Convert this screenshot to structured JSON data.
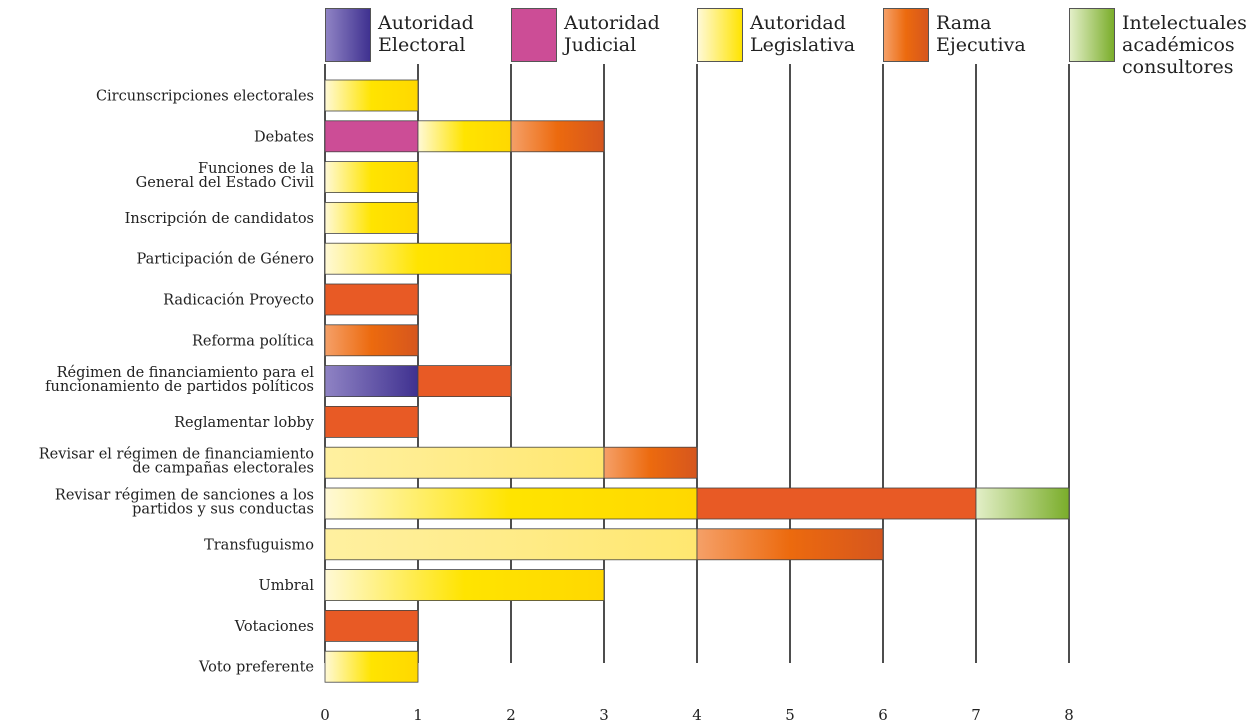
{
  "chart_data": {
    "type": "bar",
    "stacked": true,
    "orientation": "horizontal",
    "legend_position": "top",
    "grid": true,
    "xlim": [
      0,
      8
    ],
    "x_ticks": [
      "0",
      "1",
      "2",
      "3",
      "4",
      "5",
      "6",
      "7",
      "8"
    ],
    "legend": [
      {
        "id": "electoral",
        "label": "Autoridad\nElectoral",
        "color": "#5a4aa0"
      },
      {
        "id": "judicial",
        "label": "Autoridad\nJudicial",
        "color": "#cc4d96"
      },
      {
        "id": "legislativa",
        "label": "Autoridad\nLegislativa",
        "color": "#ffe000"
      },
      {
        "id": "ejecutiva",
        "label": "Rama\nEjecutiva",
        "color": "#e8541e"
      },
      {
        "id": "intelectuales",
        "label": "Intelectuales\nacadémicos\nconsultores",
        "color": "#8dbb3a"
      }
    ],
    "categories": [
      {
        "label": "Circunscripciones electorales",
        "segments": [
          {
            "series": "legislativa",
            "value": 1
          }
        ]
      },
      {
        "label": "Debates",
        "segments": [
          {
            "series": "judicial",
            "value": 1
          },
          {
            "series": "legislativa",
            "value": 1
          },
          {
            "series": "ejecutiva",
            "value": 1
          }
        ]
      },
      {
        "label": "Funciones de la\nGeneral del Estado Civil",
        "segments": [
          {
            "series": "legislativa",
            "value": 1
          }
        ]
      },
      {
        "label": "Inscripción de candidatos",
        "segments": [
          {
            "series": "legislativa",
            "value": 1
          }
        ]
      },
      {
        "label": "Participación de Género",
        "segments": [
          {
            "series": "legislativa",
            "value": 2
          }
        ]
      },
      {
        "label": "Radicación Proyecto",
        "segments": [
          {
            "series": "ejecutiva",
            "value": 1
          }
        ]
      },
      {
        "label": "Reforma política",
        "segments": [
          {
            "series": "ejecutiva",
            "value": 1
          }
        ]
      },
      {
        "label": "Régimen de financiamiento para el\nfuncionamiento de partidos políticos",
        "segments": [
          {
            "series": "electoral",
            "value": 1
          },
          {
            "series": "ejecutiva",
            "value": 1
          }
        ]
      },
      {
        "label": "Reglamentar lobby",
        "segments": [
          {
            "series": "ejecutiva",
            "value": 1
          }
        ]
      },
      {
        "label": "Revisar el régimen de financiamiento\nde campañas electorales",
        "segments": [
          {
            "series": "legislativa",
            "value": 3
          },
          {
            "series": "ejecutiva",
            "value": 1
          }
        ]
      },
      {
        "label": "Revisar régimen de sanciones a los\npartidos y sus conductas",
        "segments": [
          {
            "series": "legislativa",
            "value": 4
          },
          {
            "series": "ejecutiva",
            "value": 3
          },
          {
            "series": "intelectuales",
            "value": 1
          }
        ]
      },
      {
        "label": "Transfuguismo",
        "segments": [
          {
            "series": "legislativa",
            "value": 4
          },
          {
            "series": "ejecutiva",
            "value": 2
          }
        ]
      },
      {
        "label": "Umbral",
        "segments": [
          {
            "series": "legislativa",
            "value": 3
          }
        ]
      },
      {
        "label": "Votaciones",
        "segments": [
          {
            "series": "ejecutiva",
            "value": 1
          }
        ]
      },
      {
        "label": "Voto preferente",
        "segments": [
          {
            "series": "legislativa",
            "value": 1
          }
        ]
      }
    ]
  }
}
